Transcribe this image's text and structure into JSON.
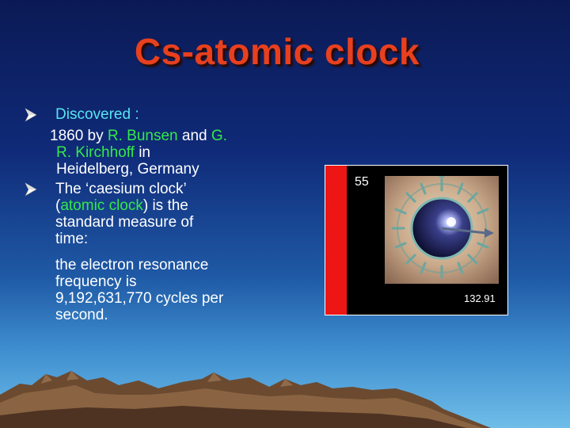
{
  "slide": {
    "title": "Cs-atomic clock",
    "bullet1": {
      "label": "Discovered :",
      "line_prefix": "1860 by ",
      "name1": "R. Bunsen",
      "and": " and ",
      "name2_a": "G.",
      "name2_b": "R. Kirchhoff",
      "suffix": " in",
      "place": "Heidelberg, Germany"
    },
    "bullet2": {
      "text_a": "The ‘caesium clock’",
      "paren_open": "(",
      "highlight": "atomic clock",
      "text_b": ") is the",
      "text_c": "standard measure of",
      "text_d": "time:"
    },
    "paragraph": {
      "line1": "the electron resonance",
      "line2": "frequency  is",
      "line3": "9,192,631,770 cycles per",
      "line4": "second."
    },
    "photo": {
      "atomic_number": "55",
      "atomic_mass": "132.91",
      "depicts": "caesium-atom-icon"
    },
    "colors": {
      "title": "#e8401f",
      "accent_cyan": "#56e6f0",
      "accent_green": "#35e84a",
      "strip_red": "#ee1515"
    }
  }
}
